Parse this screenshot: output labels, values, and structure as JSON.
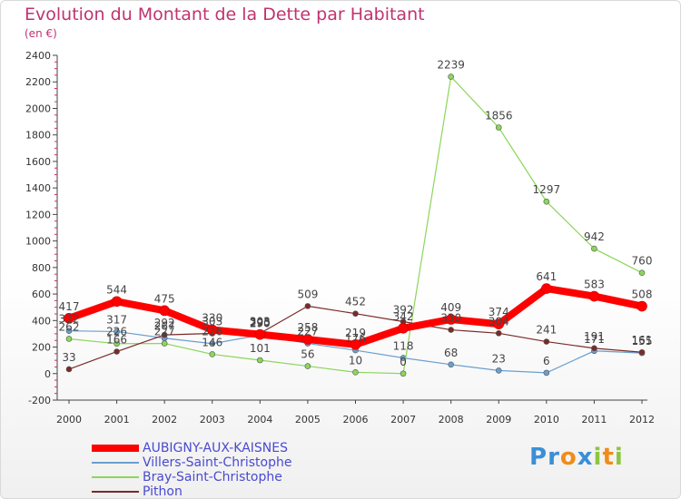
{
  "title": "Evolution du Montant de la Dette par Habitant",
  "subtitle": "(en €)",
  "logo_letters": [
    {
      "ch": "P",
      "color": "#3a8fd6"
    },
    {
      "ch": "r",
      "color": "#3a8fd6"
    },
    {
      "ch": "o",
      "color": "#f08c1a"
    },
    {
      "ch": "x",
      "color": "#3a8fd6"
    },
    {
      "ch": "i",
      "color": "#8cc63f"
    },
    {
      "ch": "t",
      "color": "#f08c1a"
    },
    {
      "ch": "i",
      "color": "#8cc63f"
    }
  ],
  "chart_data": {
    "type": "line",
    "title": "Evolution du Montant de la Dette par Habitant",
    "ylabel": "(en €)",
    "x": [
      "2000",
      "2001",
      "2002",
      "2003",
      "2004",
      "2005",
      "2006",
      "2007",
      "2008",
      "2009",
      "2010",
      "2011",
      "2012"
    ],
    "ylim": [
      -200,
      2400
    ],
    "yticks": [
      "-200",
      "0",
      "200",
      "400",
      "600",
      "800",
      "1000",
      "1200",
      "1400",
      "1600",
      "1800",
      "2000",
      "2200",
      "2400"
    ],
    "grid": false,
    "legend_position": "bottom-left",
    "series": [
      {
        "name": "AUBIGNY-AUX-KAISNES",
        "color": "#ff0000",
        "width": 8,
        "values": [
          417,
          544,
          475,
          330,
          295,
          258,
          219,
          342,
          409,
          374,
          641,
          583,
          508
        ]
      },
      {
        "name": "Villers-Saint-Christophe",
        "color": "#6a9fd0",
        "width": 1.2,
        "values": [
          322,
          317,
          267,
          226,
          290,
          227,
          176,
          118,
          68,
          23,
          6,
          171,
          155
        ]
      },
      {
        "name": "Bray-Saint-Christophe",
        "color": "#8cd65a",
        "width": 1.2,
        "values": [
          262,
          226,
          227,
          146,
          101,
          56,
          10,
          0,
          2239,
          1856,
          1297,
          942,
          760
        ]
      },
      {
        "name": "Pithon",
        "color": "#7a2a2a",
        "width": 1.2,
        "values": [
          33,
          166,
          292,
          303,
          303,
          509,
          452,
          392,
          330,
          304,
          241,
          191,
          161
        ]
      }
    ]
  }
}
